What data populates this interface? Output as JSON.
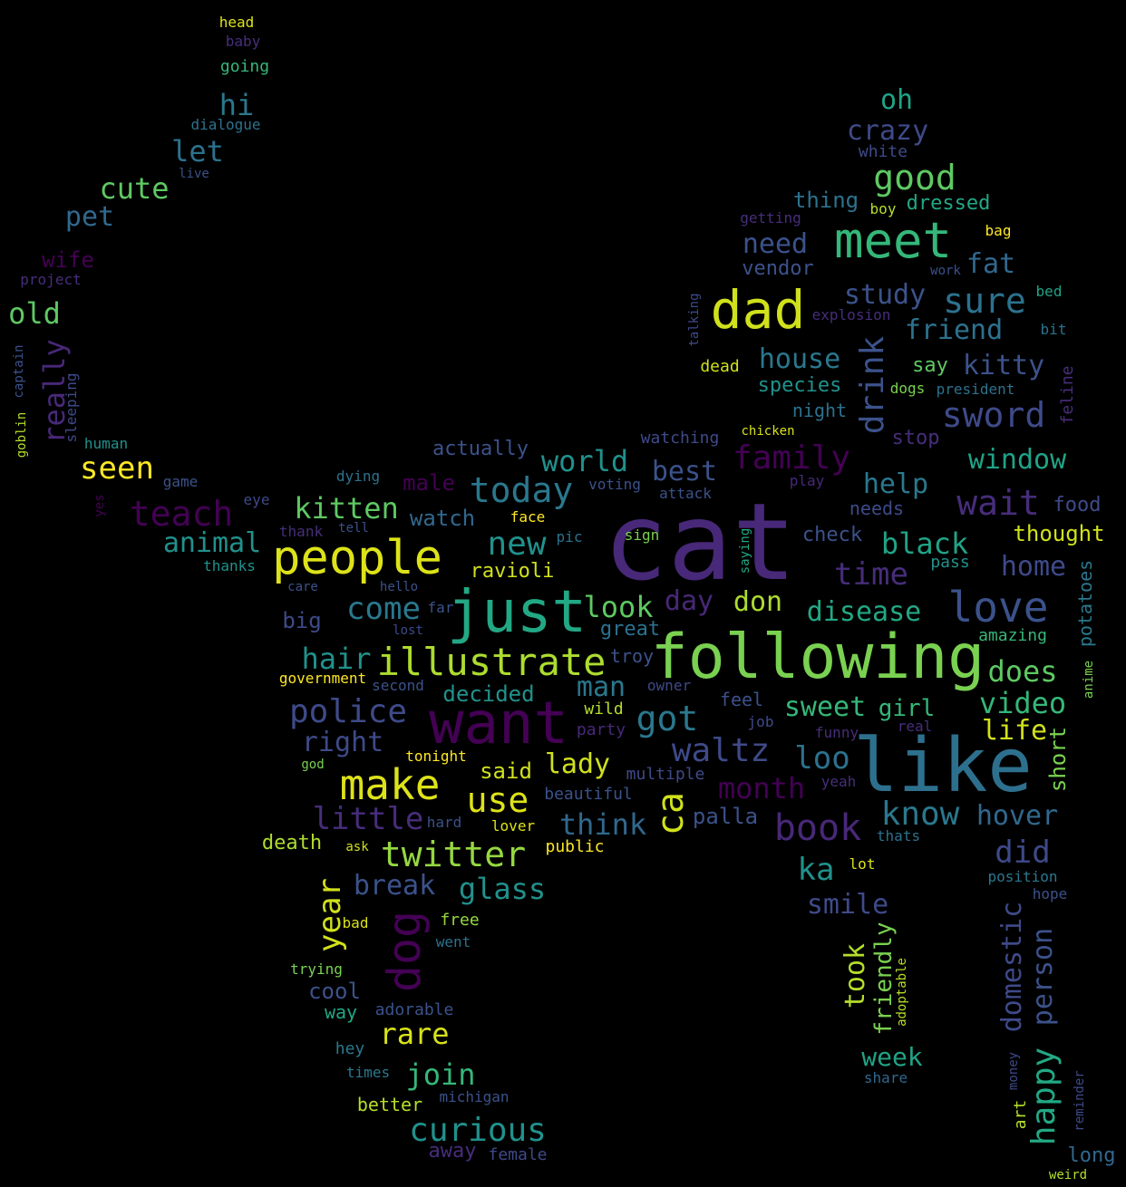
{
  "words": [
    {
      "text": "cat",
      "color": "#482878"
    },
    {
      "text": "like",
      "color": "#2d708e"
    },
    {
      "text": "following",
      "color": "#7ad151"
    },
    {
      "text": "want",
      "color": "#440154"
    },
    {
      "text": "just",
      "color": "#22a884"
    },
    {
      "text": "people",
      "color": "#dde318"
    },
    {
      "text": "meet",
      "color": "#35b779"
    },
    {
      "text": "dad",
      "color": "#d0e11c"
    },
    {
      "text": "illustrate",
      "color": "#addc30"
    },
    {
      "text": "make",
      "color": "#dde318"
    },
    {
      "text": "love",
      "color": "#3b528b"
    },
    {
      "text": "teach",
      "color": "#440154"
    },
    {
      "text": "dog",
      "color": "#440154"
    },
    {
      "text": "ca",
      "color": "#d0e11c"
    },
    {
      "text": "twitter",
      "color": "#95d840"
    },
    {
      "text": "use",
      "color": "#dde318"
    },
    {
      "text": "sword",
      "color": "#3e4a89"
    },
    {
      "text": "drink",
      "color": "#3b528b"
    },
    {
      "text": "waltz",
      "color": "#3e4a89"
    },
    {
      "text": "got",
      "color": "#2a788e"
    },
    {
      "text": "police",
      "color": "#3e4a89"
    },
    {
      "text": "book",
      "color": "#482878"
    },
    {
      "text": "know",
      "color": "#2a788e"
    },
    {
      "text": "today",
      "color": "#2a788e"
    },
    {
      "text": "wait",
      "color": "#472d7b"
    },
    {
      "text": "curious",
      "color": "#21918c"
    },
    {
      "text": "family",
      "color": "#440154"
    },
    {
      "text": "good",
      "color": "#5ec962"
    },
    {
      "text": "happy",
      "color": "#22a884"
    },
    {
      "text": "person",
      "color": "#3b528b"
    },
    {
      "text": "domestic",
      "color": "#3e4a89"
    },
    {
      "text": "sure",
      "color": "#2c728e"
    },
    {
      "text": "new",
      "color": "#21918c"
    },
    {
      "text": "come",
      "color": "#2a788e"
    },
    {
      "text": "look",
      "color": "#5ec962"
    },
    {
      "text": "year",
      "color": "#d0e11c"
    },
    {
      "text": "rare",
      "color": "#d8e219"
    },
    {
      "text": "join",
      "color": "#35b779"
    },
    {
      "text": "hair",
      "color": "#21918c"
    },
    {
      "text": "kitten",
      "color": "#5ec962"
    },
    {
      "text": "seen",
      "color": "#fde725"
    },
    {
      "text": "world",
      "color": "#21918c"
    },
    {
      "text": "best",
      "color": "#3b528b"
    },
    {
      "text": "window",
      "color": "#20a386"
    },
    {
      "text": "help",
      "color": "#2a788e"
    },
    {
      "text": "black",
      "color": "#20a386"
    },
    {
      "text": "time",
      "color": "#472d7b"
    },
    {
      "text": "video",
      "color": "#35b779"
    },
    {
      "text": "does",
      "color": "#5ec962"
    },
    {
      "text": "life",
      "color": "#d0e11c"
    },
    {
      "text": "loo",
      "color": "#2c728e"
    },
    {
      "text": "sweet",
      "color": "#35b779"
    },
    {
      "text": "month",
      "color": "#440154"
    },
    {
      "text": "little",
      "color": "#472d7b"
    },
    {
      "text": "think",
      "color": "#31688e"
    },
    {
      "text": "glass",
      "color": "#21918c"
    },
    {
      "text": "break",
      "color": "#3b528b"
    },
    {
      "text": "ka",
      "color": "#21918c"
    },
    {
      "text": "did",
      "color": "#3e4a89"
    },
    {
      "text": "hover",
      "color": "#31688e"
    },
    {
      "text": "smile",
      "color": "#3e4a89"
    },
    {
      "text": "took",
      "color": "#b5de2b"
    },
    {
      "text": "friendly",
      "color": "#7ad151"
    },
    {
      "text": "week",
      "color": "#20a386"
    },
    {
      "text": "lady",
      "color": "#d0e11c"
    },
    {
      "text": "man",
      "color": "#2a788e"
    },
    {
      "text": "right",
      "color": "#3e4a89"
    },
    {
      "text": "day",
      "color": "#482878"
    },
    {
      "text": "don",
      "color": "#addc30"
    },
    {
      "text": "disease",
      "color": "#22a884"
    },
    {
      "text": "animal",
      "color": "#21918c"
    },
    {
      "text": "watch",
      "color": "#31688e"
    },
    {
      "text": "decided",
      "color": "#21918c"
    },
    {
      "text": "ravioli",
      "color": "#d0e11c"
    },
    {
      "text": "said",
      "color": "#d0e11c"
    },
    {
      "text": "palla",
      "color": "#3b528b"
    },
    {
      "text": "girl",
      "color": "#35b779"
    },
    {
      "text": "short",
      "color": "#7ad151"
    },
    {
      "text": "home",
      "color": "#3e4a89"
    },
    {
      "text": "thought",
      "color": "#d0e11c"
    },
    {
      "text": "potatoes",
      "color": "#2a788e"
    },
    {
      "text": "kitty",
      "color": "#3b528b"
    },
    {
      "text": "friend",
      "color": "#2c728e"
    },
    {
      "text": "study",
      "color": "#3b528b"
    },
    {
      "text": "house",
      "color": "#2a788e"
    },
    {
      "text": "fat",
      "color": "#31688e"
    },
    {
      "text": "need",
      "color": "#3b528b"
    },
    {
      "text": "vendor",
      "color": "#3b528b"
    },
    {
      "text": "crazy",
      "color": "#3e4a89"
    },
    {
      "text": "oh",
      "color": "#20a386"
    },
    {
      "text": "thing",
      "color": "#2c728e"
    },
    {
      "text": "dressed",
      "color": "#22a884"
    },
    {
      "text": "species",
      "color": "#21918c"
    },
    {
      "text": "say",
      "color": "#5ec962"
    },
    {
      "text": "hi",
      "color": "#2a788e"
    },
    {
      "text": "let",
      "color": "#2c728e"
    },
    {
      "text": "cute",
      "color": "#5ec962"
    },
    {
      "text": "pet",
      "color": "#31688e"
    },
    {
      "text": "old",
      "color": "#5ec962"
    },
    {
      "text": "really",
      "color": "#482878"
    },
    {
      "text": "wife",
      "color": "#440154"
    },
    {
      "text": "cool",
      "color": "#3b528b"
    },
    {
      "text": "big",
      "color": "#3e4a89"
    },
    {
      "text": "actually",
      "color": "#3b528b"
    },
    {
      "text": "male",
      "color": "#440154"
    },
    {
      "text": "stop",
      "color": "#472d7b"
    },
    {
      "text": "night",
      "color": "#2c728e"
    },
    {
      "text": "feline",
      "color": "#472d7b"
    },
    {
      "text": "watching",
      "color": "#3e4a89"
    },
    {
      "text": "needs",
      "color": "#3e4a89"
    },
    {
      "text": "check",
      "color": "#3b528b"
    },
    {
      "text": "food",
      "color": "#3e4a89"
    },
    {
      "text": "pass",
      "color": "#21918c"
    },
    {
      "text": "amazing",
      "color": "#35b779"
    },
    {
      "text": "anime",
      "color": "#7ad151"
    },
    {
      "text": "great",
      "color": "#2c728e"
    },
    {
      "text": "troy",
      "color": "#3b528b"
    },
    {
      "text": "owner",
      "color": "#3e4a89"
    },
    {
      "text": "feel",
      "color": "#3b528b"
    },
    {
      "text": "wild",
      "color": "#b5de2b"
    },
    {
      "text": "party",
      "color": "#482878"
    },
    {
      "text": "job",
      "color": "#3e4a89"
    },
    {
      "text": "funny",
      "color": "#472d7b"
    },
    {
      "text": "real",
      "color": "#472d7b"
    },
    {
      "text": "multiple",
      "color": "#3e4a89"
    },
    {
      "text": "beautiful",
      "color": "#3b528b"
    },
    {
      "text": "yeah",
      "color": "#472d7b"
    },
    {
      "text": "thats",
      "color": "#2c728e"
    },
    {
      "text": "lot",
      "color": "#dde318"
    },
    {
      "text": "position",
      "color": "#2a788e"
    },
    {
      "text": "hope",
      "color": "#3b528b"
    },
    {
      "text": "adoptable",
      "color": "#b5de2b"
    },
    {
      "text": "share",
      "color": "#31688e"
    },
    {
      "text": "money",
      "color": "#3e4a89"
    },
    {
      "text": "art",
      "color": "#b5de2b"
    },
    {
      "text": "reminder",
      "color": "#3e4a89"
    },
    {
      "text": "long",
      "color": "#31688e"
    },
    {
      "text": "weird",
      "color": "#b5de2b"
    },
    {
      "text": "public",
      "color": "#fde725"
    },
    {
      "text": "lover",
      "color": "#dde318"
    },
    {
      "text": "hard",
      "color": "#3b528b"
    },
    {
      "text": "ask",
      "color": "#d0e11c"
    },
    {
      "text": "death",
      "color": "#addc30"
    },
    {
      "text": "free",
      "color": "#95d840"
    },
    {
      "text": "went",
      "color": "#2c728e"
    },
    {
      "text": "bad",
      "color": "#d8e219"
    },
    {
      "text": "trying",
      "color": "#7ad151"
    },
    {
      "text": "way",
      "color": "#22a884"
    },
    {
      "text": "adorable",
      "color": "#3b528b"
    },
    {
      "text": "hey",
      "color": "#2a788e"
    },
    {
      "text": "times",
      "color": "#2a788e"
    },
    {
      "text": "better",
      "color": "#b5de2b"
    },
    {
      "text": "michigan",
      "color": "#3b528b"
    },
    {
      "text": "away",
      "color": "#472d7b"
    },
    {
      "text": "female",
      "color": "#3e4a89"
    },
    {
      "text": "government",
      "color": "#fde725"
    },
    {
      "text": "second",
      "color": "#3b528b"
    },
    {
      "text": "tonight",
      "color": "#fde725"
    },
    {
      "text": "god",
      "color": "#7ad151"
    },
    {
      "text": "care",
      "color": "#3b528b"
    },
    {
      "text": "far",
      "color": "#3b528b"
    },
    {
      "text": "lost",
      "color": "#3e4a89"
    },
    {
      "text": "hello",
      "color": "#3b528b"
    },
    {
      "text": "thank",
      "color": "#472d7b"
    },
    {
      "text": "tell",
      "color": "#3b528b"
    },
    {
      "text": "thanks",
      "color": "#21918c"
    },
    {
      "text": "face",
      "color": "#fde725"
    },
    {
      "text": "pic",
      "color": "#2c728e"
    },
    {
      "text": "sign",
      "color": "#7ad151"
    },
    {
      "text": "saying",
      "color": "#22a884"
    },
    {
      "text": "dying",
      "color": "#2c728e"
    },
    {
      "text": "voting",
      "color": "#3b528b"
    },
    {
      "text": "attack",
      "color": "#3b528b"
    },
    {
      "text": "play",
      "color": "#482878"
    },
    {
      "text": "eye",
      "color": "#3e4a89"
    },
    {
      "text": "yes",
      "color": "#440154"
    },
    {
      "text": "game",
      "color": "#3b528b"
    },
    {
      "text": "human",
      "color": "#21918c"
    },
    {
      "text": "sleeping",
      "color": "#3e4a89"
    },
    {
      "text": "goblin",
      "color": "#b5de2b"
    },
    {
      "text": "captain",
      "color": "#3b528b"
    },
    {
      "text": "project",
      "color": "#472d7b"
    },
    {
      "text": "live",
      "color": "#3b528b"
    },
    {
      "text": "dialogue",
      "color": "#2c728e"
    },
    {
      "text": "going",
      "color": "#35b779"
    },
    {
      "text": "baby",
      "color": "#472d7b"
    },
    {
      "text": "head",
      "color": "#dde318"
    },
    {
      "text": "white",
      "color": "#3e4a89"
    },
    {
      "text": "boy",
      "color": "#b5de2b"
    },
    {
      "text": "bag",
      "color": "#fde725"
    },
    {
      "text": "getting",
      "color": "#472d7b"
    },
    {
      "text": "work",
      "color": "#3b528b"
    },
    {
      "text": "bed",
      "color": "#20a386"
    },
    {
      "text": "explosion",
      "color": "#472d7b"
    },
    {
      "text": "talking",
      "color": "#3e4a89"
    },
    {
      "text": "bit",
      "color": "#2c728e"
    },
    {
      "text": "dead",
      "color": "#d0e11c"
    },
    {
      "text": "dogs",
      "color": "#7ad151"
    },
    {
      "text": "president",
      "color": "#2c728e"
    },
    {
      "text": "chicken",
      "color": "#d8e219"
    }
  ]
}
